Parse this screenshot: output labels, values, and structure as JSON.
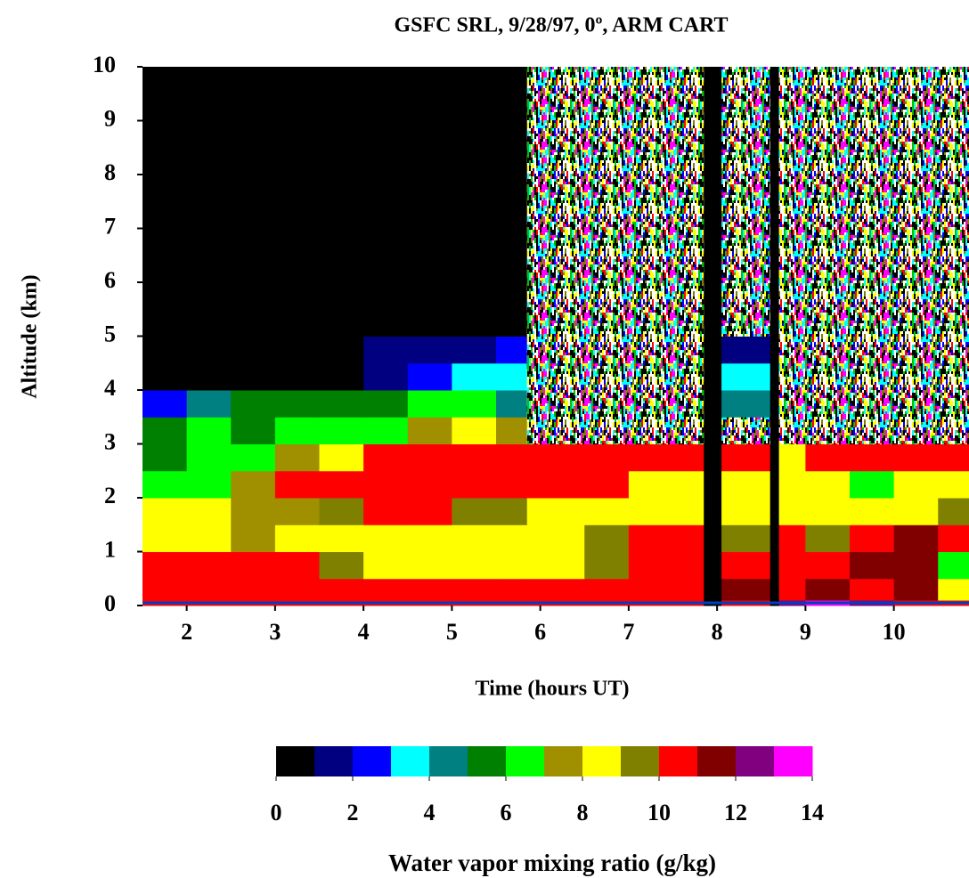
{
  "chart_data": {
    "type": "heatmap",
    "title": "GSFC SRL, 9/28/97, 0º, ARM CART",
    "xlabel": "Time (hours UT)",
    "ylabel": "Altitude (km)",
    "xlim": [
      1.5,
      10.85
    ],
    "ylim": [
      0,
      10
    ],
    "xticks": [
      2,
      3,
      4,
      5,
      6,
      7,
      8,
      9,
      10
    ],
    "yticks": [
      0,
      1,
      2,
      3,
      4,
      5,
      6,
      7,
      8,
      9,
      10
    ],
    "x_edges": [
      1.5,
      2,
      2.5,
      3,
      3.5,
      4,
      4.5,
      5,
      5.5,
      5.85,
      6.5,
      7,
      7.5,
      7.85,
      8.05,
      8.6,
      8.7,
      9,
      9.5,
      10,
      10.5,
      10.85
    ],
    "y_edges": [
      0,
      0.1,
      0.5,
      1,
      1.5,
      2,
      2.5,
      3,
      3.5,
      4,
      4.5,
      5,
      10
    ],
    "z": [
      [
        10.5,
        10.5,
        10.5,
        10.5,
        10.5,
        10.5,
        10.5,
        10.5,
        10.5,
        10.5,
        10.5,
        10.5,
        10.5,
        0,
        10.5,
        0,
        12.5,
        13.5,
        12.5,
        10.5,
        10.5
      ],
      [
        10.5,
        10.5,
        10.5,
        10.5,
        10.5,
        10.5,
        10.5,
        10.5,
        10.5,
        10.5,
        10.5,
        10.5,
        10.5,
        0,
        11.5,
        0,
        10.5,
        11.5,
        10.5,
        11.5,
        8.5
      ],
      [
        10.5,
        10.5,
        10.5,
        10.5,
        9.5,
        8.5,
        8.5,
        8.5,
        8.5,
        8.5,
        9.5,
        10.5,
        10.5,
        0,
        10.5,
        0,
        10.5,
        10.5,
        11.5,
        11.5,
        6.5
      ],
      [
        8.5,
        8.5,
        7.5,
        8.5,
        8.5,
        8.5,
        8.5,
        8.5,
        8.5,
        8.5,
        9.5,
        10.5,
        10.5,
        0,
        9.5,
        0,
        10.5,
        9.5,
        10.5,
        11.5,
        10.5
      ],
      [
        8.5,
        8.5,
        7.5,
        7.5,
        9.5,
        10.5,
        10.5,
        9.5,
        9.5,
        8.5,
        8.5,
        8.5,
        8.5,
        0,
        8.5,
        0,
        8.5,
        8.5,
        8.5,
        8.5,
        9.5
      ],
      [
        6.5,
        6.5,
        7.5,
        10.5,
        10.5,
        10.5,
        10.5,
        10.5,
        10.5,
        10.5,
        10.5,
        8.5,
        8.5,
        0,
        8.5,
        0,
        8.5,
        8.5,
        6.5,
        8.5,
        8.5
      ],
      [
        5.5,
        6.5,
        6.5,
        7.5,
        8.5,
        10.5,
        10.5,
        10.5,
        10.5,
        10.5,
        10.5,
        10.5,
        10.5,
        0,
        10.5,
        0,
        8.5,
        10.5,
        10.5,
        10.5,
        10.5
      ],
      [
        5.5,
        6.5,
        5.5,
        6.5,
        6.5,
        6.5,
        7.5,
        8.5,
        7.5,
        null,
        null,
        null,
        null,
        0,
        null,
        0,
        null,
        null,
        null,
        null,
        null
      ],
      [
        2.5,
        4.5,
        5.5,
        5.5,
        5.5,
        5.5,
        6.5,
        6.5,
        4.5,
        null,
        null,
        null,
        null,
        0,
        4.5,
        0,
        null,
        null,
        null,
        null,
        null
      ],
      [
        0.5,
        0.5,
        0.5,
        0.5,
        0.5,
        1.5,
        2.5,
        3.5,
        3.5,
        null,
        null,
        null,
        null,
        0,
        3.5,
        0,
        null,
        null,
        null,
        null,
        null
      ],
      [
        0.5,
        0.5,
        0.5,
        0.5,
        0.5,
        1.5,
        1.5,
        1.5,
        2.5,
        null,
        null,
        null,
        null,
        0,
        1.5,
        0,
        null,
        null,
        null,
        null,
        null
      ],
      [
        0.5,
        0.5,
        0.5,
        0.5,
        0.5,
        0.5,
        0.5,
        0.5,
        0.5,
        null,
        null,
        null,
        null,
        0,
        null,
        0,
        null,
        null,
        null,
        null,
        null
      ]
    ],
    "colorbar": {
      "label": "Water vapor mixing ratio (g/kg)",
      "bounds": [
        0,
        1,
        2,
        3,
        4,
        5,
        6,
        7,
        8,
        9,
        10,
        11,
        12,
        13,
        14
      ],
      "colors": [
        "#000000",
        "#000080",
        "#0000ff",
        "#00ffff",
        "#008080",
        "#008000",
        "#00ff00",
        "#a09000",
        "#ffff00",
        "#808000",
        "#ff0000",
        "#800000",
        "#800080",
        "#ff00ff"
      ],
      "ticks": [
        0,
        2,
        4,
        6,
        8,
        10,
        12,
        14
      ]
    }
  }
}
